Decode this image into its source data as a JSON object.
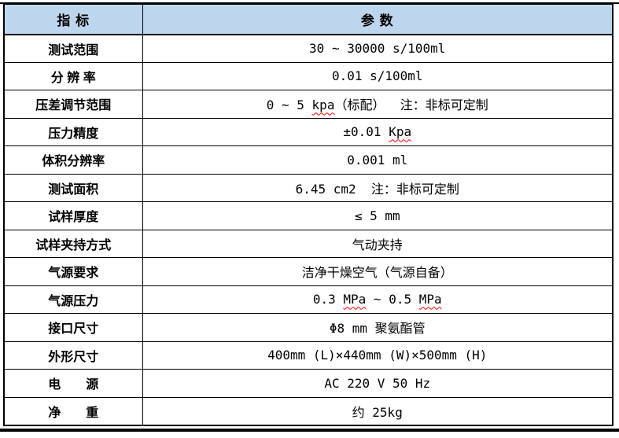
{
  "colors": {
    "header_bg": "#bdd6ee",
    "border": "#000000",
    "text": "#000000",
    "spellcheck_underline": "#ff0000",
    "page_bg": "#ffffff"
  },
  "table": {
    "header": {
      "indicator": "指 标",
      "parameter": "参 数"
    },
    "rows": [
      {
        "label": "测试范围",
        "value": [
          {
            "t": "30 ~ 30000 s/100ml"
          }
        ]
      },
      {
        "label": "分 辨 率",
        "value": [
          {
            "t": "0.01 s/100ml"
          }
        ]
      },
      {
        "label": "压差调节范围",
        "value": [
          {
            "t": "0 ~ 5 "
          },
          {
            "t": "kpa",
            "misspelled": true
          },
          {
            "t": "（标配）  注：非标可定制"
          }
        ]
      },
      {
        "label": "压力精度",
        "value": [
          {
            "t": "±0.01 "
          },
          {
            "t": "Kpa",
            "misspelled": true
          }
        ]
      },
      {
        "label": "体积分辨率",
        "value": [
          {
            "t": "0.001 ml"
          }
        ]
      },
      {
        "label": "测试面积",
        "value": [
          {
            "t": "6.45 cm2  注：非标可定制"
          }
        ]
      },
      {
        "label": "试样厚度",
        "value": [
          {
            "t": "≤ 5 mm"
          }
        ]
      },
      {
        "label": "试样夹持方式",
        "value": [
          {
            "t": "气动夹持"
          }
        ]
      },
      {
        "label": "气源要求",
        "value": [
          {
            "t": "洁净干燥空气（气源自备）"
          }
        ]
      },
      {
        "label": "气源压力",
        "value": [
          {
            "t": "0.3 "
          },
          {
            "t": "MPa",
            "misspelled": true
          },
          {
            "t": " ~ 0.5 "
          },
          {
            "t": "MPa",
            "misspelled": true
          }
        ]
      },
      {
        "label": "接口尺寸",
        "value": [
          {
            "t": "Φ8 mm 聚氨酯管"
          }
        ]
      },
      {
        "label": "外形尺寸",
        "value": [
          {
            "t": "400mm (L)×440mm (W)×500mm (H)"
          }
        ]
      },
      {
        "label": "电　　源",
        "value": [
          {
            "t": "AC 220 V 50 Hz"
          }
        ]
      },
      {
        "label": "净　　重",
        "value": [
          {
            "t": "约 25kg"
          }
        ]
      }
    ]
  }
}
